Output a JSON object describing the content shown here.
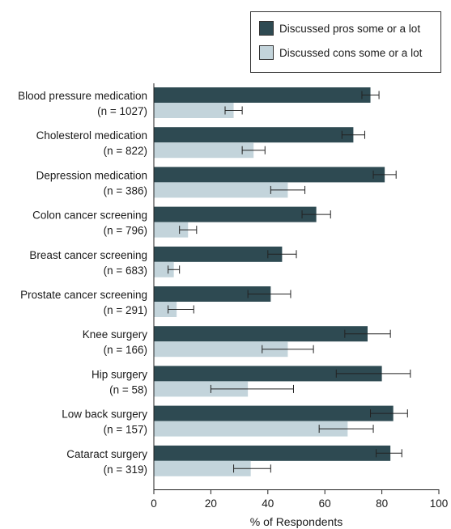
{
  "chart_data": {
    "type": "bar",
    "orientation": "horizontal",
    "categories": [
      {
        "name": "Blood pressure medication",
        "n": "(n = 1027)"
      },
      {
        "name": "Cholesterol medication",
        "n": "(n = 822)"
      },
      {
        "name": "Depression medication",
        "n": "(n = 386)"
      },
      {
        "name": "Colon cancer screening",
        "n": "(n = 796)"
      },
      {
        "name": "Breast cancer screening",
        "n": "(n = 683)"
      },
      {
        "name": "Prostate cancer screening",
        "n": "(n = 291)"
      },
      {
        "name": "Knee surgery",
        "n": "(n = 166)"
      },
      {
        "name": "Hip surgery",
        "n": "(n = 58)"
      },
      {
        "name": "Low back surgery",
        "n": "(n = 157)"
      },
      {
        "name": "Cataract surgery",
        "n": "(n = 319)"
      }
    ],
    "series": [
      {
        "name": "Discussed pros some or a lot",
        "color": "#2e4a52",
        "values": [
          76,
          70,
          81,
          57,
          45,
          41,
          75,
          80,
          84,
          83
        ],
        "ci_low": [
          73,
          66,
          77,
          52,
          40,
          33,
          67,
          64,
          76,
          78
        ],
        "ci_high": [
          79,
          74,
          85,
          62,
          50,
          48,
          83,
          90,
          89,
          87
        ]
      },
      {
        "name": "Discussed cons some or a lot",
        "color": "#c3d4db",
        "values": [
          28,
          35,
          47,
          12,
          7,
          8,
          47,
          33,
          68,
          34
        ],
        "ci_low": [
          25,
          31,
          41,
          9,
          5,
          5,
          38,
          20,
          58,
          28
        ],
        "ci_high": [
          31,
          39,
          53,
          15,
          9,
          14,
          56,
          49,
          77,
          41
        ]
      }
    ],
    "xlabel": "% of Respondents",
    "xlim": [
      0,
      100
    ],
    "xticks": [
      0,
      20,
      40,
      60,
      80,
      100
    ],
    "legend_position": "top-right",
    "grid": false
  }
}
